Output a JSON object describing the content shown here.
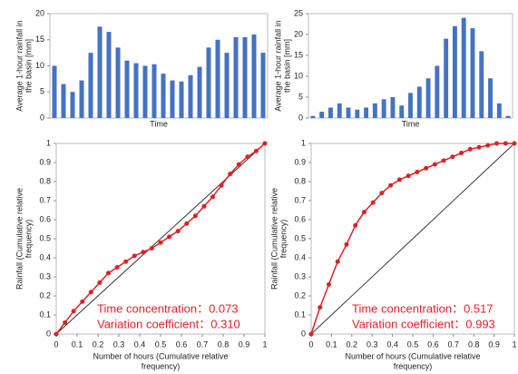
{
  "chart_data": [
    {
      "type": "bar",
      "ylabel": [
        "Average 1-hour rainfall in",
        "the basin [mm]"
      ],
      "xlabel": "Time",
      "color": "#4472c4",
      "values": [
        10,
        6.5,
        5,
        7.2,
        12.5,
        17.5,
        16.5,
        13.5,
        11,
        10.5,
        10,
        10.3,
        8.5,
        7.2,
        7,
        8.2,
        9.8,
        13.5,
        15,
        12.5,
        15.5,
        15.5,
        16,
        12.5
      ],
      "ylim": [
        0,
        20
      ],
      "yticks": [
        0,
        5,
        10,
        15,
        20
      ]
    },
    {
      "type": "bar",
      "ylabel": [
        "Average 1-hour rainfall in",
        "the basin [mm]"
      ],
      "xlabel": "Time",
      "color": "#4472c4",
      "values": [
        0.5,
        1.5,
        2.5,
        3.5,
        2.5,
        2,
        2.5,
        3.5,
        4.5,
        5,
        3,
        6,
        7.5,
        9.5,
        12.5,
        19,
        22,
        24,
        21.5,
        16,
        9.5,
        3.5,
        0.5
      ],
      "ylim": [
        0,
        25
      ],
      "yticks": [
        0,
        5,
        10,
        15,
        20,
        25
      ]
    },
    {
      "type": "line",
      "ylabel": [
        "Rainfall (Cumulative relative",
        "frequency)"
      ],
      "xlabel": [
        "Number of hours (Cumulative relative",
        "frequency)"
      ],
      "annotations": [
        "Time concentration：0.073",
        "Variation coefficient：0.310"
      ],
      "xlim": [
        0,
        1
      ],
      "ylim": [
        0,
        1
      ],
      "xticks": [
        0,
        0.1,
        0.2,
        0.3,
        0.4,
        0.5,
        0.6,
        0.7,
        0.8,
        0.9,
        1
      ],
      "yticks": [
        0,
        0.1,
        0.2,
        0.3,
        0.4,
        0.5,
        0.6,
        0.7,
        0.8,
        0.9,
        1
      ],
      "series": [
        {
          "color": "#333333",
          "markers": false,
          "x": [
            0,
            1
          ],
          "values": [
            0,
            1
          ]
        },
        {
          "color": "#e02020",
          "markers": true,
          "x": [
            0,
            0.0417,
            0.0833,
            0.125,
            0.1667,
            0.2083,
            0.25,
            0.2917,
            0.3333,
            0.375,
            0.4167,
            0.4583,
            0.5,
            0.5417,
            0.5833,
            0.625,
            0.6667,
            0.7083,
            0.75,
            0.7917,
            0.8333,
            0.875,
            0.9167,
            0.9583,
            1
          ],
          "values": [
            0,
            0.06,
            0.12,
            0.17,
            0.22,
            0.27,
            0.32,
            0.35,
            0.38,
            0.41,
            0.43,
            0.45,
            0.48,
            0.51,
            0.54,
            0.58,
            0.62,
            0.67,
            0.72,
            0.78,
            0.84,
            0.89,
            0.93,
            0.96,
            1
          ]
        }
      ]
    },
    {
      "type": "line",
      "ylabel": [
        "Rainfall (Cumulative relative",
        "frequency)"
      ],
      "xlabel": [
        "Number of hours (Cumulative relative",
        "frequency)"
      ],
      "annotations": [
        "Time concentration：0.517",
        "Variation coefficient：0.993"
      ],
      "xlim": [
        0,
        1
      ],
      "ylim": [
        0,
        1
      ],
      "xticks": [
        0,
        0.1,
        0.2,
        0.3,
        0.4,
        0.5,
        0.6,
        0.7,
        0.8,
        0.9,
        1
      ],
      "yticks": [
        0,
        0.1,
        0.2,
        0.3,
        0.4,
        0.5,
        0.6,
        0.7,
        0.8,
        0.9,
        1
      ],
      "series": [
        {
          "color": "#333333",
          "markers": false,
          "x": [
            0,
            1
          ],
          "values": [
            0,
            1
          ]
        },
        {
          "color": "#e02020",
          "markers": true,
          "x": [
            0,
            0.0435,
            0.087,
            0.1304,
            0.1739,
            0.2174,
            0.2609,
            0.3043,
            0.3478,
            0.3913,
            0.4348,
            0.4783,
            0.5217,
            0.5652,
            0.6087,
            0.6522,
            0.6957,
            0.7391,
            0.7826,
            0.8261,
            0.8696,
            0.913,
            0.9565,
            1
          ],
          "values": [
            0,
            0.14,
            0.26,
            0.38,
            0.47,
            0.57,
            0.64,
            0.69,
            0.74,
            0.78,
            0.81,
            0.83,
            0.85,
            0.87,
            0.89,
            0.91,
            0.93,
            0.95,
            0.97,
            0.98,
            0.99,
            1,
            1,
            1
          ]
        }
      ]
    }
  ]
}
